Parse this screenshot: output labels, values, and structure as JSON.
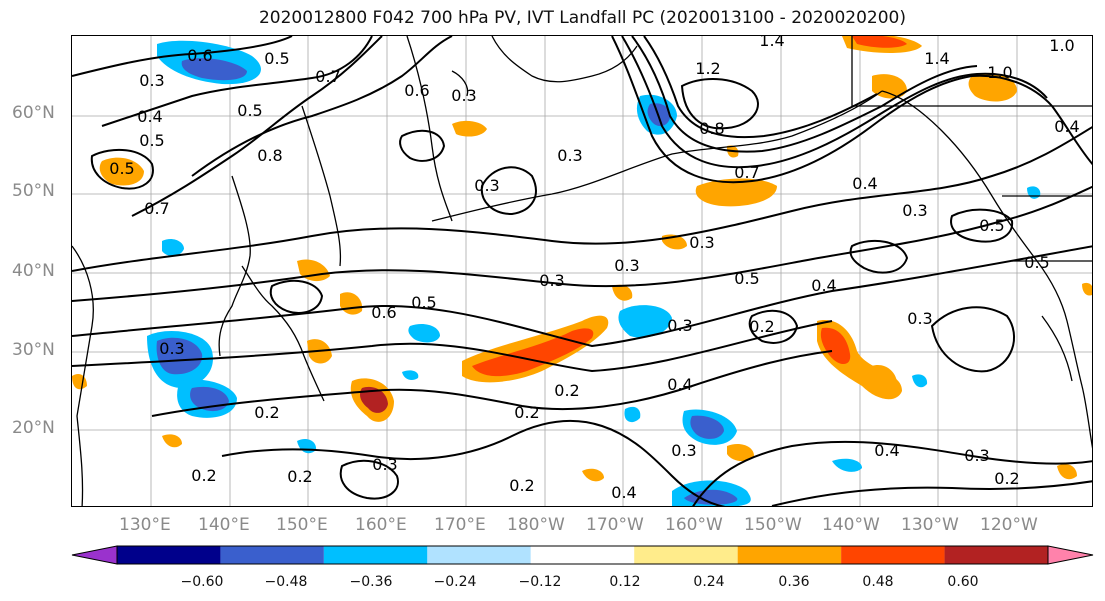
{
  "title": "2020012800 F042 700 hPa PV, IVT Landfall PC (2020013100 - 2020020200)",
  "latitude_labels": [
    "60°N",
    "50°N",
    "40°N",
    "30°N",
    "20°N"
  ],
  "longitude_labels": [
    "130°E",
    "140°E",
    "150°E",
    "160°E",
    "170°E",
    "180°W",
    "170°W",
    "160°W",
    "150°W",
    "140°W",
    "130°W",
    "120°W"
  ],
  "contour_labels": [
    "0.6",
    "0.5",
    "0.3",
    "0.4",
    "0.7",
    "0.6",
    "0.5",
    "0.3",
    "1.4",
    "1.2",
    "0.8",
    "1.0",
    "1.4",
    "1.0",
    "0.4",
    "0.5",
    "0.5",
    "0.8",
    "0.7",
    "0.3",
    "0.3",
    "0.4",
    "0.3",
    "0.7",
    "0.3",
    "0.5",
    "0.4",
    "0.3",
    "0.6",
    "0.5",
    "0.3",
    "0.2",
    "0.5",
    "0.3",
    "0.2",
    "0.3",
    "0.2",
    "0.2",
    "0.3",
    "0.2",
    "0.4",
    "0.3",
    "0.2",
    "0.4",
    "0.3",
    "0.2",
    "0.2",
    "0.3",
    "0.4",
    "0.5"
  ],
  "colorbar": {
    "ticks": [
      "−0.60",
      "−0.48",
      "−0.36",
      "−0.24",
      "−0.12",
      "0.12",
      "0.24",
      "0.36",
      "0.48",
      "0.60"
    ],
    "colors": [
      "#9a32cd",
      "#00008b",
      "#3a5fcd",
      "#00bfff",
      "#b0e2ff",
      "#ffffff",
      "#ffec8b",
      "#ffa500",
      "#ff4500",
      "#b22222",
      "#ff82ab"
    ],
    "extend": "both"
  },
  "colors": {
    "contour": "#000000",
    "coastline": "#000000",
    "grid": "#808080",
    "axis_labels": "#8a8a8a"
  }
}
